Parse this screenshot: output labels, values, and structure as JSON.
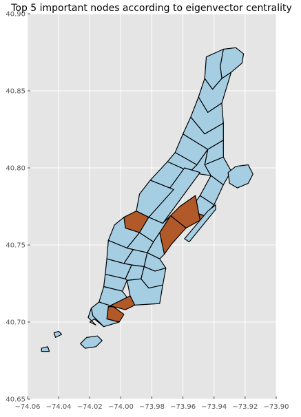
{
  "chart_data": {
    "type": "map",
    "title": "Top 5 important nodes according to eigenvector centrality",
    "xlim": [
      -74.06,
      -73.9
    ],
    "ylim": [
      40.65,
      40.9
    ],
    "x_ticks": [
      -74.06,
      -74.04,
      -74.02,
      -74.0,
      -73.98,
      -73.96,
      -73.94,
      -73.92,
      -73.9
    ],
    "x_tick_labels": [
      "−74.06",
      "−74.04",
      "−74.02",
      "−74.00",
      "−73.98",
      "−73.96",
      "−73.94",
      "−73.92",
      "−73.90"
    ],
    "y_ticks": [
      40.65,
      40.7,
      40.75,
      40.8,
      40.85,
      40.9
    ],
    "y_tick_labels": [
      "40.65",
      "40.70",
      "40.75",
      "40.80",
      "40.85",
      "40.90"
    ],
    "grid": true,
    "colors": {
      "background": "#e5e5e5",
      "grid": "#ffffff",
      "zone_default": "#a6cee3",
      "zone_highlight": "#b15928",
      "edge": "#000000"
    },
    "regions": [
      {
        "name": "zone-n-tip",
        "highlight": false,
        "coords": [
          [
            -73.934,
            40.877
          ],
          [
            -73.926,
            40.878
          ],
          [
            -73.921,
            40.874
          ],
          [
            -73.922,
            40.868
          ],
          [
            -73.929,
            40.862
          ],
          [
            -73.935,
            40.858
          ],
          [
            -73.936,
            40.866
          ]
        ]
      },
      {
        "name": "zone-inwood",
        "highlight": false,
        "coords": [
          [
            -73.945,
            40.872
          ],
          [
            -73.934,
            40.877
          ],
          [
            -73.936,
            40.866
          ],
          [
            -73.935,
            40.858
          ],
          [
            -73.941,
            40.851
          ],
          [
            -73.946,
            40.858
          ]
        ]
      },
      {
        "name": "zone-washington-heights-n",
        "highlight": false,
        "coords": [
          [
            -73.946,
            40.858
          ],
          [
            -73.941,
            40.851
          ],
          [
            -73.935,
            40.858
          ],
          [
            -73.929,
            40.862
          ],
          [
            -73.935,
            40.842
          ],
          [
            -73.944,
            40.836
          ],
          [
            -73.95,
            40.846
          ]
        ]
      },
      {
        "name": "zone-washington-heights-s",
        "highlight": false,
        "coords": [
          [
            -73.95,
            40.846
          ],
          [
            -73.944,
            40.836
          ],
          [
            -73.935,
            40.842
          ],
          [
            -73.934,
            40.829
          ],
          [
            -73.946,
            40.822
          ],
          [
            -73.955,
            40.833
          ]
        ]
      },
      {
        "name": "zone-hamilton-heights",
        "highlight": false,
        "coords": [
          [
            -73.955,
            40.833
          ],
          [
            -73.946,
            40.822
          ],
          [
            -73.934,
            40.829
          ],
          [
            -73.934,
            40.818
          ],
          [
            -73.944,
            40.812
          ],
          [
            -73.96,
            40.822
          ]
        ]
      },
      {
        "name": "zone-manhattanville",
        "highlight": false,
        "coords": [
          [
            -73.96,
            40.822
          ],
          [
            -73.944,
            40.812
          ],
          [
            -73.951,
            40.802
          ],
          [
            -73.965,
            40.81
          ]
        ]
      },
      {
        "name": "zone-central-harlem-n",
        "highlight": false,
        "coords": [
          [
            -73.944,
            40.812
          ],
          [
            -73.934,
            40.818
          ],
          [
            -73.934,
            40.807
          ],
          [
            -73.946,
            40.802
          ]
        ]
      },
      {
        "name": "zone-central-harlem-s",
        "highlight": false,
        "coords": [
          [
            -73.951,
            40.802
          ],
          [
            -73.944,
            40.812
          ],
          [
            -73.946,
            40.802
          ],
          [
            -73.942,
            40.795
          ],
          [
            -73.956,
            40.797
          ]
        ]
      },
      {
        "name": "zone-east-harlem-n",
        "highlight": false,
        "coords": [
          [
            -73.946,
            40.802
          ],
          [
            -73.934,
            40.807
          ],
          [
            -73.929,
            40.798
          ],
          [
            -73.934,
            40.789
          ],
          [
            -73.942,
            40.795
          ]
        ]
      },
      {
        "name": "zone-morningside",
        "highlight": false,
        "coords": [
          [
            -73.965,
            40.81
          ],
          [
            -73.951,
            40.802
          ],
          [
            -73.956,
            40.797
          ],
          [
            -73.961,
            40.8
          ],
          [
            -73.97,
            40.804
          ]
        ]
      },
      {
        "name": "zone-uws-n",
        "highlight": false,
        "coords": [
          [
            -73.97,
            40.804
          ],
          [
            -73.961,
            40.8
          ],
          [
            -73.956,
            40.797
          ],
          [
            -73.966,
            40.786
          ],
          [
            -73.981,
            40.792
          ]
        ]
      },
      {
        "name": "zone-central-park",
        "highlight": false,
        "coords": [
          [
            -73.959,
            40.8
          ],
          [
            -73.949,
            40.797
          ],
          [
            -73.973,
            40.764
          ],
          [
            -73.982,
            40.768
          ]
        ]
      },
      {
        "name": "zone-east-harlem-s",
        "highlight": false,
        "coords": [
          [
            -73.942,
            40.795
          ],
          [
            -73.934,
            40.789
          ],
          [
            -73.94,
            40.776
          ],
          [
            -73.949,
            40.782
          ]
        ]
      },
      {
        "name": "zone-uws-s",
        "highlight": false,
        "coords": [
          [
            -73.981,
            40.792
          ],
          [
            -73.966,
            40.786
          ],
          [
            -73.982,
            40.768
          ],
          [
            -73.99,
            40.772
          ],
          [
            -73.988,
            40.783
          ]
        ]
      },
      {
        "name": "zone-upper-east-side-n",
        "highlight": false,
        "coords": [
          [
            -73.949,
            40.782
          ],
          [
            -73.94,
            40.776
          ],
          [
            -73.946,
            40.769
          ],
          [
            -73.956,
            40.772
          ]
        ]
      },
      {
        "name": "zone-upper-east-side-mid",
        "highlight": true,
        "coords": [
          [
            -73.956,
            40.772
          ],
          [
            -73.946,
            40.769
          ],
          [
            -73.949,
            40.766
          ],
          [
            -73.952,
            40.782
          ],
          [
            -73.962,
            40.775
          ]
        ]
      },
      {
        "name": "zone-lincoln-square",
        "highlight": true,
        "coords": [
          [
            -73.99,
            40.772
          ],
          [
            -73.982,
            40.768
          ],
          [
            -73.988,
            40.758
          ],
          [
            -73.997,
            40.761
          ],
          [
            -73.998,
            40.768
          ]
        ]
      },
      {
        "name": "zone-upper-east-side-s",
        "highlight": true,
        "coords": [
          [
            -73.962,
            40.775
          ],
          [
            -73.952,
            40.782
          ],
          [
            -73.949,
            40.766
          ],
          [
            -73.958,
            40.761
          ],
          [
            -73.968,
            40.769
          ]
        ]
      },
      {
        "name": "zone-sutton-place",
        "highlight": true,
        "coords": [
          [
            -73.968,
            40.769
          ],
          [
            -73.958,
            40.761
          ],
          [
            -73.967,
            40.751
          ],
          [
            -73.972,
            40.744
          ],
          [
            -73.975,
            40.758
          ]
        ]
      },
      {
        "name": "zone-midtown-center",
        "highlight": false,
        "coords": [
          [
            -73.982,
            40.768
          ],
          [
            -73.973,
            40.764
          ],
          [
            -73.968,
            40.769
          ],
          [
            -73.975,
            40.758
          ],
          [
            -73.979,
            40.752
          ],
          [
            -73.988,
            40.758
          ]
        ]
      },
      {
        "name": "zone-clinton-w",
        "highlight": false,
        "coords": [
          [
            -73.998,
            40.768
          ],
          [
            -73.997,
            40.761
          ],
          [
            -73.988,
            40.758
          ],
          [
            -73.996,
            40.748
          ],
          [
            -74.008,
            40.753
          ],
          [
            -74.004,
            40.763
          ]
        ]
      },
      {
        "name": "zone-murray-hill",
        "highlight": false,
        "coords": [
          [
            -73.979,
            40.752
          ],
          [
            -73.975,
            40.758
          ],
          [
            -73.972,
            40.744
          ],
          [
            -73.975,
            40.741
          ],
          [
            -73.983,
            40.745
          ]
        ]
      },
      {
        "name": "zone-midtown-s",
        "highlight": false,
        "coords": [
          [
            -73.988,
            40.758
          ],
          [
            -73.979,
            40.752
          ],
          [
            -73.983,
            40.745
          ],
          [
            -73.992,
            40.747
          ],
          [
            -73.996,
            40.748
          ]
        ]
      },
      {
        "name": "zone-chelsea",
        "highlight": false,
        "coords": [
          [
            -74.008,
            40.753
          ],
          [
            -73.996,
            40.748
          ],
          [
            -73.992,
            40.747
          ],
          [
            -73.998,
            40.738
          ],
          [
            -74.009,
            40.741
          ]
        ]
      },
      {
        "name": "zone-gramercy",
        "highlight": false,
        "coords": [
          [
            -73.983,
            40.745
          ],
          [
            -73.975,
            40.741
          ],
          [
            -73.971,
            40.735
          ],
          [
            -73.978,
            40.733
          ],
          [
            -73.985,
            40.736
          ]
        ]
      },
      {
        "name": "zone-flatiron",
        "highlight": false,
        "coords": [
          [
            -73.992,
            40.747
          ],
          [
            -73.983,
            40.745
          ],
          [
            -73.985,
            40.736
          ],
          [
            -73.993,
            40.737
          ],
          [
            -73.998,
            40.738
          ]
        ]
      },
      {
        "name": "zone-west-village",
        "highlight": false,
        "coords": [
          [
            -74.009,
            40.741
          ],
          [
            -73.998,
            40.738
          ],
          [
            -73.993,
            40.737
          ],
          [
            -73.997,
            40.728
          ],
          [
            -74.01,
            40.731
          ]
        ]
      },
      {
        "name": "zone-east-village",
        "highlight": false,
        "coords": [
          [
            -73.985,
            40.736
          ],
          [
            -73.978,
            40.733
          ],
          [
            -73.971,
            40.735
          ],
          [
            -73.973,
            40.724
          ],
          [
            -73.982,
            40.722
          ],
          [
            -73.987,
            40.728
          ]
        ]
      },
      {
        "name": "zone-greenwich-village",
        "highlight": false,
        "coords": [
          [
            -73.993,
            40.737
          ],
          [
            -73.985,
            40.736
          ],
          [
            -73.987,
            40.728
          ],
          [
            -73.996,
            40.727
          ],
          [
            -73.997,
            40.728
          ]
        ]
      },
      {
        "name": "zone-soho",
        "highlight": false,
        "coords": [
          [
            -74.01,
            40.731
          ],
          [
            -73.997,
            40.728
          ],
          [
            -73.996,
            40.727
          ],
          [
            -73.999,
            40.72
          ],
          [
            -74.011,
            40.723
          ]
        ]
      },
      {
        "name": "zone-lower-east-side",
        "highlight": false,
        "coords": [
          [
            -73.987,
            40.728
          ],
          [
            -73.982,
            40.722
          ],
          [
            -73.973,
            40.724
          ],
          [
            -73.975,
            40.712
          ],
          [
            -73.991,
            40.711
          ],
          [
            -73.994,
            40.717
          ],
          [
            -73.996,
            40.727
          ]
        ]
      },
      {
        "name": "zone-tribeca",
        "highlight": false,
        "coords": [
          [
            -74.011,
            40.723
          ],
          [
            -73.999,
            40.72
          ],
          [
            -73.996,
            40.716
          ],
          [
            -74.005,
            40.71
          ],
          [
            -74.014,
            40.713
          ]
        ]
      },
      {
        "name": "zone-chinatown",
        "highlight": true,
        "coords": [
          [
            -73.996,
            40.716
          ],
          [
            -73.994,
            40.717
          ],
          [
            -73.991,
            40.711
          ],
          [
            -73.997,
            40.708
          ],
          [
            -74.005,
            40.71
          ],
          [
            -74.002,
            40.708
          ],
          [
            -73.998,
            40.705
          ],
          [
            -74.001,
            40.7
          ],
          [
            -74.009,
            40.702
          ],
          [
            -74.008,
            40.71
          ]
        ]
      },
      {
        "name": "zone-financial-district",
        "highlight": false,
        "coords": [
          [
            -74.014,
            40.713
          ],
          [
            -74.005,
            40.71
          ],
          [
            -74.008,
            40.71
          ],
          [
            -74.009,
            40.702
          ],
          [
            -74.001,
            40.7
          ],
          [
            -74.011,
            40.697
          ],
          [
            -74.018,
            40.704
          ],
          [
            -74.019,
            40.709
          ]
        ]
      },
      {
        "name": "zone-battery",
        "highlight": false,
        "coords": [
          [
            -74.019,
            40.709
          ],
          [
            -74.018,
            40.704
          ],
          [
            -74.011,
            40.697
          ],
          [
            -74.017,
            40.702
          ],
          [
            -74.02,
            40.7
          ],
          [
            -74.016,
            40.698
          ],
          [
            -74.021,
            40.703
          ]
        ]
      },
      {
        "name": "zone-randalls-island",
        "highlight": false,
        "coords": [
          [
            -73.931,
            40.797
          ],
          [
            -73.926,
            40.801
          ],
          [
            -73.918,
            40.802
          ],
          [
            -73.915,
            40.796
          ],
          [
            -73.918,
            40.79
          ],
          [
            -73.925,
            40.787
          ],
          [
            -73.93,
            40.79
          ]
        ]
      },
      {
        "name": "zone-roosevelt-island",
        "highlight": false,
        "coords": [
          [
            -73.944,
            40.772
          ],
          [
            -73.939,
            40.776
          ],
          [
            -73.939,
            40.773
          ],
          [
            -73.956,
            40.752
          ],
          [
            -73.959,
            40.754
          ]
        ]
      },
      {
        "name": "zone-governors-island",
        "highlight": false,
        "coords": [
          [
            -74.022,
            40.69
          ],
          [
            -74.015,
            40.691
          ],
          [
            -74.012,
            40.688
          ],
          [
            -74.016,
            40.684
          ],
          [
            -74.023,
            40.683
          ],
          [
            -74.026,
            40.686
          ]
        ]
      },
      {
        "name": "zone-liberty-island",
        "highlight": false,
        "coords": [
          [
            -74.043,
            40.693
          ],
          [
            -74.04,
            40.694
          ],
          [
            -74.038,
            40.692
          ],
          [
            -74.042,
            40.69
          ]
        ]
      },
      {
        "name": "zone-ellis-island",
        "highlight": false,
        "coords": [
          [
            -74.051,
            40.683
          ],
          [
            -74.047,
            40.684
          ],
          [
            -74.046,
            40.681
          ],
          [
            -74.051,
            40.681
          ]
        ]
      }
    ]
  }
}
